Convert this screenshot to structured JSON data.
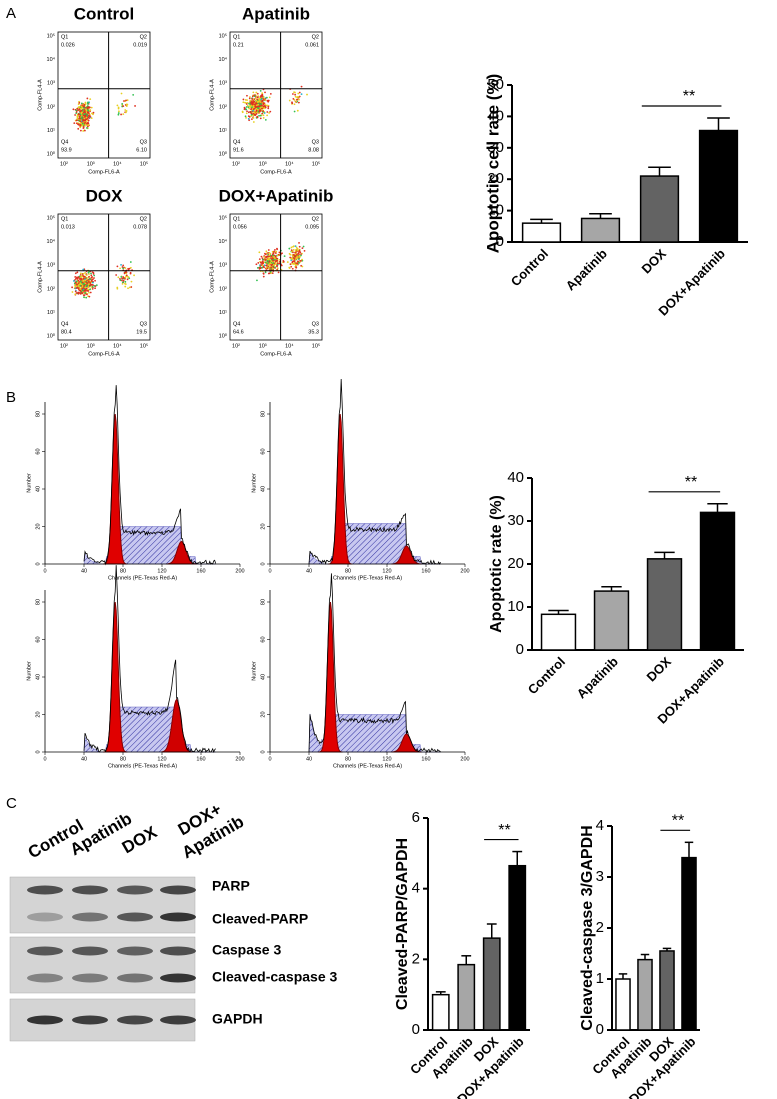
{
  "panel_labels": [
    "A",
    "B",
    "C"
  ],
  "flow_plots": {
    "x_label": "Comp-FL6-A",
    "y_label": "Comp-FL4-A",
    "xticks": [
      "10²",
      "10³",
      "10⁴",
      "10⁵"
    ],
    "yticks": [
      "10⁰",
      "10¹",
      "10²",
      "10³",
      "10⁴",
      "10⁵"
    ],
    "plots": [
      {
        "title": "Control",
        "quadrants": [
          {
            "name": "Q1",
            "value": "0.026"
          },
          {
            "name": "Q2",
            "value": "0.019"
          },
          {
            "name": "Q3",
            "value": "6.10"
          },
          {
            "name": "Q4",
            "value": "93.9"
          }
        ]
      },
      {
        "title": "Apatinib",
        "quadrants": [
          {
            "name": "Q1",
            "value": "0.21"
          },
          {
            "name": "Q2",
            "value": "0.061"
          },
          {
            "name": "Q3",
            "value": "8.08"
          },
          {
            "name": "Q4",
            "value": "91.6"
          }
        ]
      },
      {
        "title": "DOX",
        "quadrants": [
          {
            "name": "Q1",
            "value": "0.013"
          },
          {
            "name": "Q2",
            "value": "0.078"
          },
          {
            "name": "Q3",
            "value": "19.5"
          },
          {
            "name": "Q4",
            "value": "80.4"
          }
        ]
      },
      {
        "title": "DOX+Apatinib",
        "quadrants": [
          {
            "name": "Q1",
            "value": "0.056"
          },
          {
            "name": "Q2",
            "value": "0.095"
          },
          {
            "name": "Q3",
            "value": "35.3"
          },
          {
            "name": "Q4",
            "value": "64.6"
          }
        ]
      }
    ]
  },
  "histograms": {
    "x_label": "Channels (PE-Texas Red-A)",
    "y_label": "Number",
    "xticks": [
      0,
      40,
      80,
      120,
      160,
      200
    ],
    "yticks": [
      0,
      20,
      40,
      60,
      80
    ]
  },
  "western_blot": {
    "columns": [
      "Control",
      "Apatinib",
      "DOX",
      "DOX+",
      "Apatinib"
    ],
    "rows": [
      "PARP",
      "Cleaved-PARP",
      "Caspase 3",
      "Cleaved-caspase 3",
      "GAPDH"
    ]
  },
  "chart_data": [
    {
      "type": "bar",
      "y_label": "Apoptotic cell rate (%)",
      "categories": [
        "Control",
        "Apatinib",
        "DOX",
        "DOX+Apatinib"
      ],
      "values": [
        6,
        7.5,
        21,
        35.5
      ],
      "errors": [
        1.2,
        1.5,
        2.8,
        4
      ],
      "colors": [
        "#ffffff",
        "#a6a6a6",
        "#636363",
        "#000000"
      ],
      "ylim": [
        0,
        50
      ],
      "yticks": [
        0,
        10,
        20,
        30,
        40,
        50
      ],
      "significance": [
        {
          "from": "DOX",
          "to": "DOX+Apatinib",
          "label": "**"
        }
      ]
    },
    {
      "type": "bar",
      "y_label": "Apoptotic rate (%)",
      "categories": [
        "Control",
        "Apatinib",
        "DOX",
        "DOX+Apatinib"
      ],
      "values": [
        8.3,
        13.7,
        21.2,
        32
      ],
      "errors": [
        0.9,
        1,
        1.5,
        2
      ],
      "colors": [
        "#ffffff",
        "#a6a6a6",
        "#636363",
        "#000000"
      ],
      "ylim": [
        0,
        40
      ],
      "yticks": [
        0,
        10,
        20,
        30,
        40
      ],
      "significance": [
        {
          "from": "DOX",
          "to": "DOX+Apatinib",
          "label": "**"
        }
      ]
    },
    {
      "type": "bar",
      "y_label": "Cleaved-PARP/GAPDH",
      "categories": [
        "Control",
        "Apatinib",
        "DOX",
        "DOX+Apatinib"
      ],
      "values": [
        1,
        1.85,
        2.6,
        4.65
      ],
      "errors": [
        0.08,
        0.25,
        0.4,
        0.4
      ],
      "colors": [
        "#ffffff",
        "#a6a6a6",
        "#636363",
        "#000000"
      ],
      "ylim": [
        0,
        6
      ],
      "yticks": [
        0,
        2,
        4,
        6
      ],
      "significance": [
        {
          "from": "DOX",
          "to": "DOX+Apatinib",
          "label": "**"
        }
      ]
    },
    {
      "type": "bar",
      "y_label": "Cleaved-caspase 3/GAPDH",
      "categories": [
        "Control",
        "Apatinib",
        "DOX",
        "DOX+Apatinib"
      ],
      "values": [
        1,
        1.38,
        1.55,
        3.38
      ],
      "errors": [
        0.1,
        0.1,
        0.05,
        0.3
      ],
      "colors": [
        "#ffffff",
        "#a6a6a6",
        "#636363",
        "#000000"
      ],
      "ylim": [
        0,
        4
      ],
      "yticks": [
        0,
        1,
        2,
        3,
        4
      ],
      "significance": [
        {
          "from": "DOX",
          "to": "DOX+Apatinib",
          "label": "**"
        }
      ]
    }
  ]
}
